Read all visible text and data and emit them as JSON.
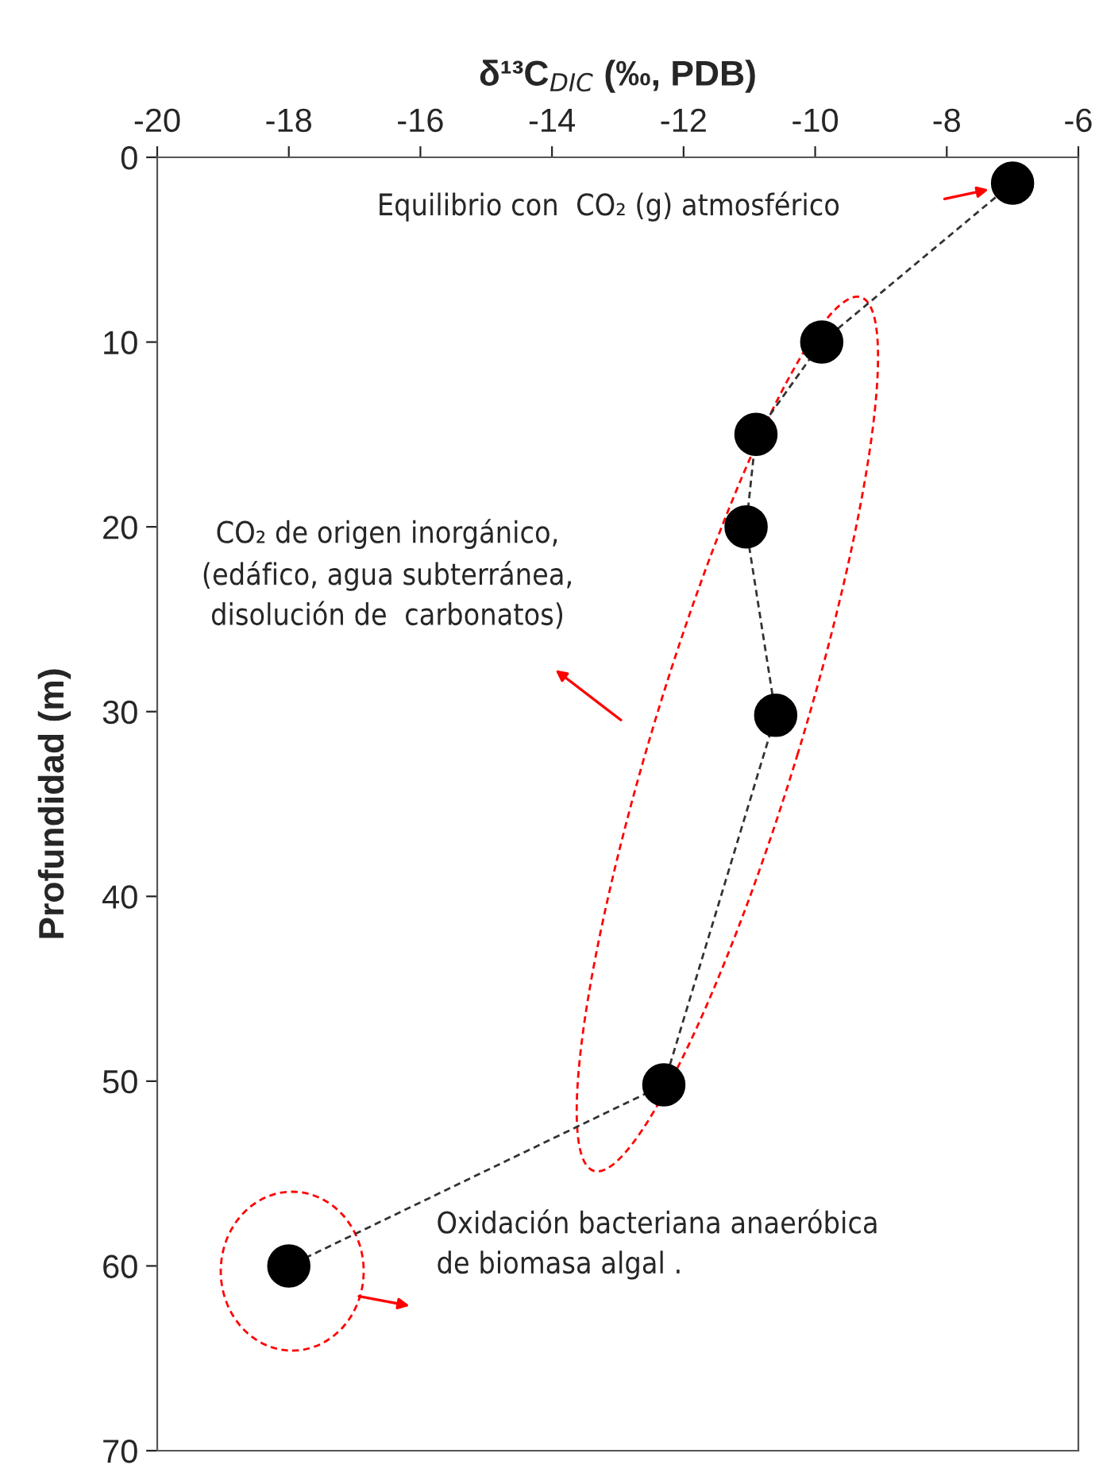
{
  "chart_data": {
    "type": "line",
    "xlabel": "δ¹³C$_{DIC}$ (‰, PDB)",
    "ylabel": "Profundidad (m)",
    "x": [
      -7.0,
      -9.9,
      -10.9,
      -11.05,
      -10.6,
      -12.3,
      -18.0
    ],
    "series": [
      {
        "color": "#000000",
        "values": [
          1.4,
          10,
          15,
          20,
          30.2,
          50.2,
          60
        ]
      }
    ],
    "xlim": [
      -20,
      -6
    ],
    "xticks": [
      -20,
      -18,
      -16,
      -14,
      -12,
      -10,
      -8,
      -6
    ],
    "ylim": [
      70,
      0
    ],
    "yticks": [
      0,
      10,
      20,
      30,
      40,
      50,
      60,
      70
    ],
    "marker": "circle",
    "line_style": "dashed",
    "grid": false,
    "legend": false,
    "annotations": [
      "Equilibrio con  CO₂ (g) atmosférico",
      "CO₂ de origen inorgánico,\n(edáfico, agua subterránea,\ndisolución de  carbonatos)",
      "Oxidación bacteriana anaeróbica\nde biomasa algal ."
    ]
  }
}
